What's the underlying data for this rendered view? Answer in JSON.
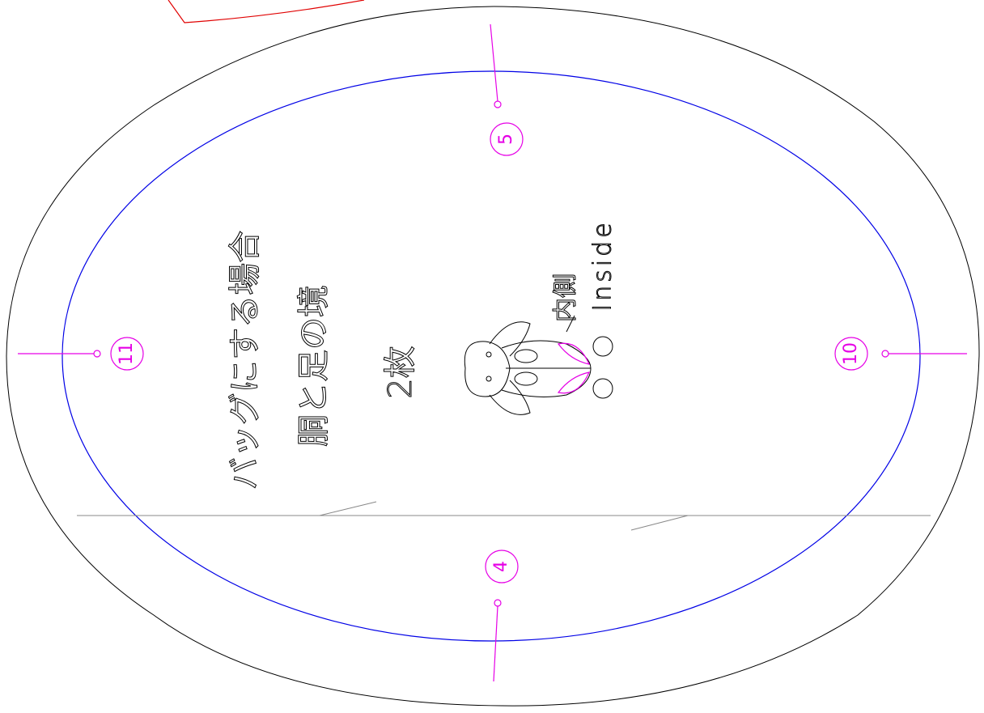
{
  "texts": {
    "bag_note": "バッグにする場合",
    "boundary": "胴と足の境",
    "count": "2枚",
    "inside_jp": "内側",
    "inside_en": "Inside"
  },
  "markers": [
    "5",
    "11",
    "10",
    "4"
  ]
}
